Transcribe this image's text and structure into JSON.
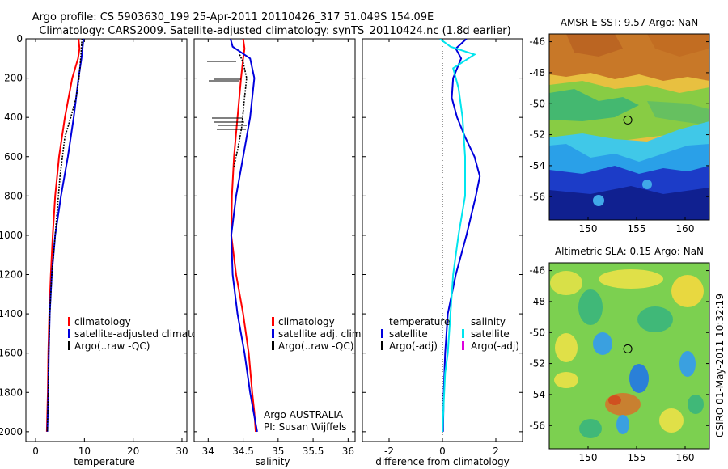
{
  "title": {
    "line1": "Argo profile: CS 5903630_199 25-Apr-2011 20110426_317 51.049S 154.09E",
    "line2": "Climatology: CARS2009. Satellite-adjusted climatology: synTS_20110424.nc (1.8d earlier)"
  },
  "side_text": "CSIRO 01-May-2011 10:32:19",
  "colors": {
    "climatology": "#ff0000",
    "satellite": "#0000dd",
    "argo": "#000000",
    "salinity_satellite": "#00e5ee",
    "salinity_argo_adj": "#dd00dd"
  },
  "chart_data": [
    {
      "type": "line",
      "panel": "temperature",
      "xlabel": "temperature",
      "ylabel": "",
      "xlim": [
        -2,
        31
      ],
      "ylim": [
        2050,
        0
      ],
      "xticks": [
        0,
        10,
        20,
        30
      ],
      "yticks": [
        0,
        200,
        400,
        600,
        800,
        1000,
        1200,
        1400,
        1600,
        1800,
        2000
      ],
      "legend_position": "lower-middle",
      "series": [
        {
          "name": "climatology",
          "color": "#ff0000",
          "x": [
            8.8,
            9.0,
            8.7,
            7.5,
            6.0,
            4.8,
            4.0,
            3.5,
            3.1,
            2.8,
            2.6,
            2.5,
            2.4,
            2.3
          ],
          "y": [
            0,
            50,
            100,
            200,
            400,
            600,
            800,
            1000,
            1200,
            1400,
            1600,
            1800,
            1900,
            2000
          ]
        },
        {
          "name": "satellite-adjusted climatology",
          "color": "#0000dd",
          "x": [
            9.8,
            9.6,
            9.4,
            8.8,
            7.8,
            6.6,
            5.2,
            4.0,
            3.3,
            2.9,
            2.7,
            2.6,
            2.5,
            2.4
          ],
          "y": [
            0,
            50,
            100,
            200,
            400,
            600,
            800,
            1000,
            1200,
            1400,
            1600,
            1800,
            1900,
            2000
          ]
        },
        {
          "name": "Argo(..raw -QC)",
          "color": "#000000",
          "x": [
            9.5,
            9.3,
            8.9,
            8.3,
            7.2,
            6.0,
            5.0,
            4.0,
            3.3,
            2.9,
            2.7,
            2.6,
            2.5,
            2.4
          ],
          "y": [
            0,
            80,
            200,
            300,
            400,
            500,
            700,
            1000,
            1200,
            1400,
            1600,
            1800,
            1900,
            2000
          ]
        }
      ]
    },
    {
      "type": "line",
      "panel": "salinity",
      "xlabel": "salinity",
      "xlim": [
        33.8,
        36.1
      ],
      "ylim": [
        2050,
        0
      ],
      "xticks": [
        34,
        34.5,
        35,
        35.5,
        36
      ],
      "yticks": [
        0,
        200,
        400,
        600,
        800,
        1000,
        1200,
        1400,
        1600,
        1800,
        2000
      ],
      "legend_position": "lower-middle",
      "annotation": [
        "Argo AUSTRALIA",
        "PI: Susan Wijffels"
      ],
      "series": [
        {
          "name": "climatology",
          "color": "#ff0000",
          "x": [
            34.5,
            34.52,
            34.5,
            34.47,
            34.42,
            34.37,
            34.34,
            34.33,
            34.4,
            34.5,
            34.58,
            34.63,
            34.66,
            34.68
          ],
          "y": [
            0,
            50,
            100,
            200,
            400,
            600,
            800,
            1000,
            1200,
            1400,
            1600,
            1800,
            1900,
            2000
          ]
        },
        {
          "name": "satellite adj. clim.",
          "color": "#0000dd",
          "x": [
            34.32,
            34.35,
            34.6,
            34.66,
            34.6,
            34.5,
            34.4,
            34.33,
            34.35,
            34.42,
            34.52,
            34.6,
            34.65,
            34.7
          ],
          "y": [
            0,
            40,
            100,
            200,
            400,
            600,
            800,
            1000,
            1200,
            1400,
            1600,
            1800,
            1900,
            2000
          ]
        },
        {
          "name": "Argo(..raw -QC)",
          "color": "#000000",
          "x": [
            34.45,
            34.5,
            34.55,
            34.52,
            34.48,
            34.43,
            34.37
          ],
          "y": [
            80,
            120,
            200,
            300,
            450,
            550,
            650
          ]
        }
      ]
    },
    {
      "type": "line",
      "panel": "difference",
      "xlabel": "difference from climatology",
      "xlim": [
        -3,
        3
      ],
      "ylim": [
        2050,
        0
      ],
      "xticks": [
        -2,
        0,
        2
      ],
      "yticks": [
        0,
        200,
        400,
        600,
        800,
        1000,
        1200,
        1400,
        1600,
        1800,
        2000
      ],
      "legend_position": "lower-middle",
      "legend_headers": [
        "temperature",
        "salinity"
      ],
      "series": [
        {
          "name": "satellite",
          "group": "temperature",
          "color": "#0000dd",
          "x": [
            0.9,
            0.5,
            0.7,
            0.4,
            0.35,
            0.55,
            0.85,
            1.2,
            1.4,
            1.25,
            0.9,
            0.5,
            0.2,
            0.1,
            0.05,
            0.02
          ],
          "y": [
            0,
            50,
            100,
            200,
            300,
            400,
            500,
            600,
            700,
            800,
            1000,
            1200,
            1400,
            1600,
            1800,
            2000
          ]
        },
        {
          "name": "satellite",
          "group": "salinity",
          "color": "#00e5ee",
          "x": [
            -0.1,
            0.3,
            1.2,
            0.4,
            0.6,
            0.75,
            0.85,
            0.85,
            0.6,
            0.4,
            0.3,
            0.2,
            0.1,
            0.05,
            0.0
          ],
          "y": [
            0,
            40,
            80,
            150,
            250,
            400,
            600,
            800,
            1000,
            1200,
            1400,
            1600,
            1700,
            1850,
            2000
          ]
        },
        {
          "name": "Argo(-adj)",
          "group": "temperature",
          "color": "#000000",
          "x": [],
          "y": []
        },
        {
          "name": "Argo(-adj)",
          "group": "salinity",
          "color": "#dd00dd",
          "x": [],
          "y": []
        }
      ]
    },
    {
      "type": "heatmap",
      "panel": "sst-map",
      "title": "AMSR-E SST: 9.57 Argo: NaN",
      "xlim": [
        146,
        162.5
      ],
      "ylim": [
        -57.5,
        -45.5
      ],
      "xticks": [
        150,
        155,
        160
      ],
      "yticks": [
        -46,
        -48,
        -50,
        -52,
        -54,
        -56
      ],
      "yaxis_side": "right",
      "marker": {
        "lon": 154.09,
        "lat": -51.049
      }
    },
    {
      "type": "heatmap",
      "panel": "sla-map",
      "title": "Altimetric SLA: 0.15 Argo: NaN",
      "xlim": [
        146,
        162.5
      ],
      "ylim": [
        -57.5,
        -45.5
      ],
      "xticks": [
        150,
        155,
        160
      ],
      "yticks": [
        -46,
        -48,
        -50,
        -52,
        -54,
        -56
      ],
      "yaxis_side": "right",
      "marker": {
        "lon": 154.09,
        "lat": -51.049
      }
    }
  ]
}
